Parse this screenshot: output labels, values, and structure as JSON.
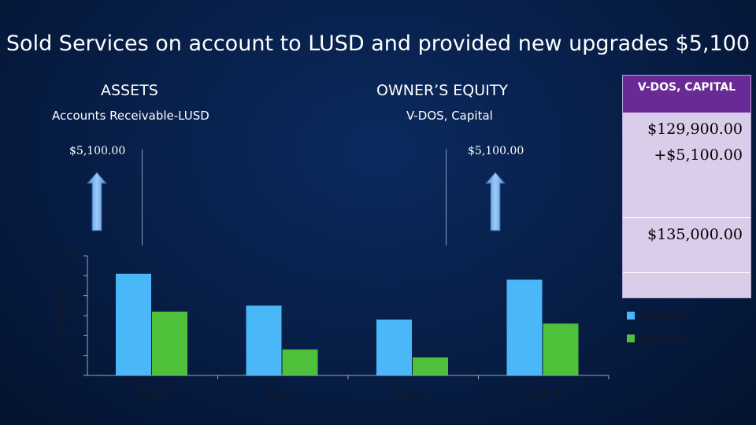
{
  "title": "Sold Services on account to LUSD and provided new upgrades $5,100",
  "assets": {
    "header": "ASSETS",
    "account": "Accounts Receivable-LUSD",
    "amount": "$5,100.00"
  },
  "equity": {
    "header": "OWNER’S EQUITY",
    "account": "V-DOS, Capital",
    "amount": "$5,100.00"
  },
  "capital_box": {
    "header": "V-DOS, CAPITAL",
    "line1": "$129,900.00",
    "line2": "+$5,100.00",
    "total": "$135,000.00"
  },
  "colors": {
    "revenue": "#4ab8f8",
    "expenses": "#4fc03a",
    "capital_header": "#6a2a96",
    "capital_body": "#d9cdea"
  },
  "chart_data": {
    "type": "bar",
    "categories": [
      "Sale 1",
      "Sale 2",
      "Sale 3",
      "Sale 4"
    ],
    "series": [
      {
        "name": "Revenue",
        "values": [
          5.1,
          3.5,
          2.8,
          4.8
        ]
      },
      {
        "name": "Expenses",
        "values": [
          3.2,
          1.3,
          0.9,
          2.6
        ]
      }
    ],
    "ylabel": "Thousands",
    "ylim": [
      0,
      6
    ],
    "yticks": [
      "0",
      "1",
      "2",
      "3",
      "4",
      "5",
      "6"
    ],
    "grid": false,
    "legend": "right"
  }
}
